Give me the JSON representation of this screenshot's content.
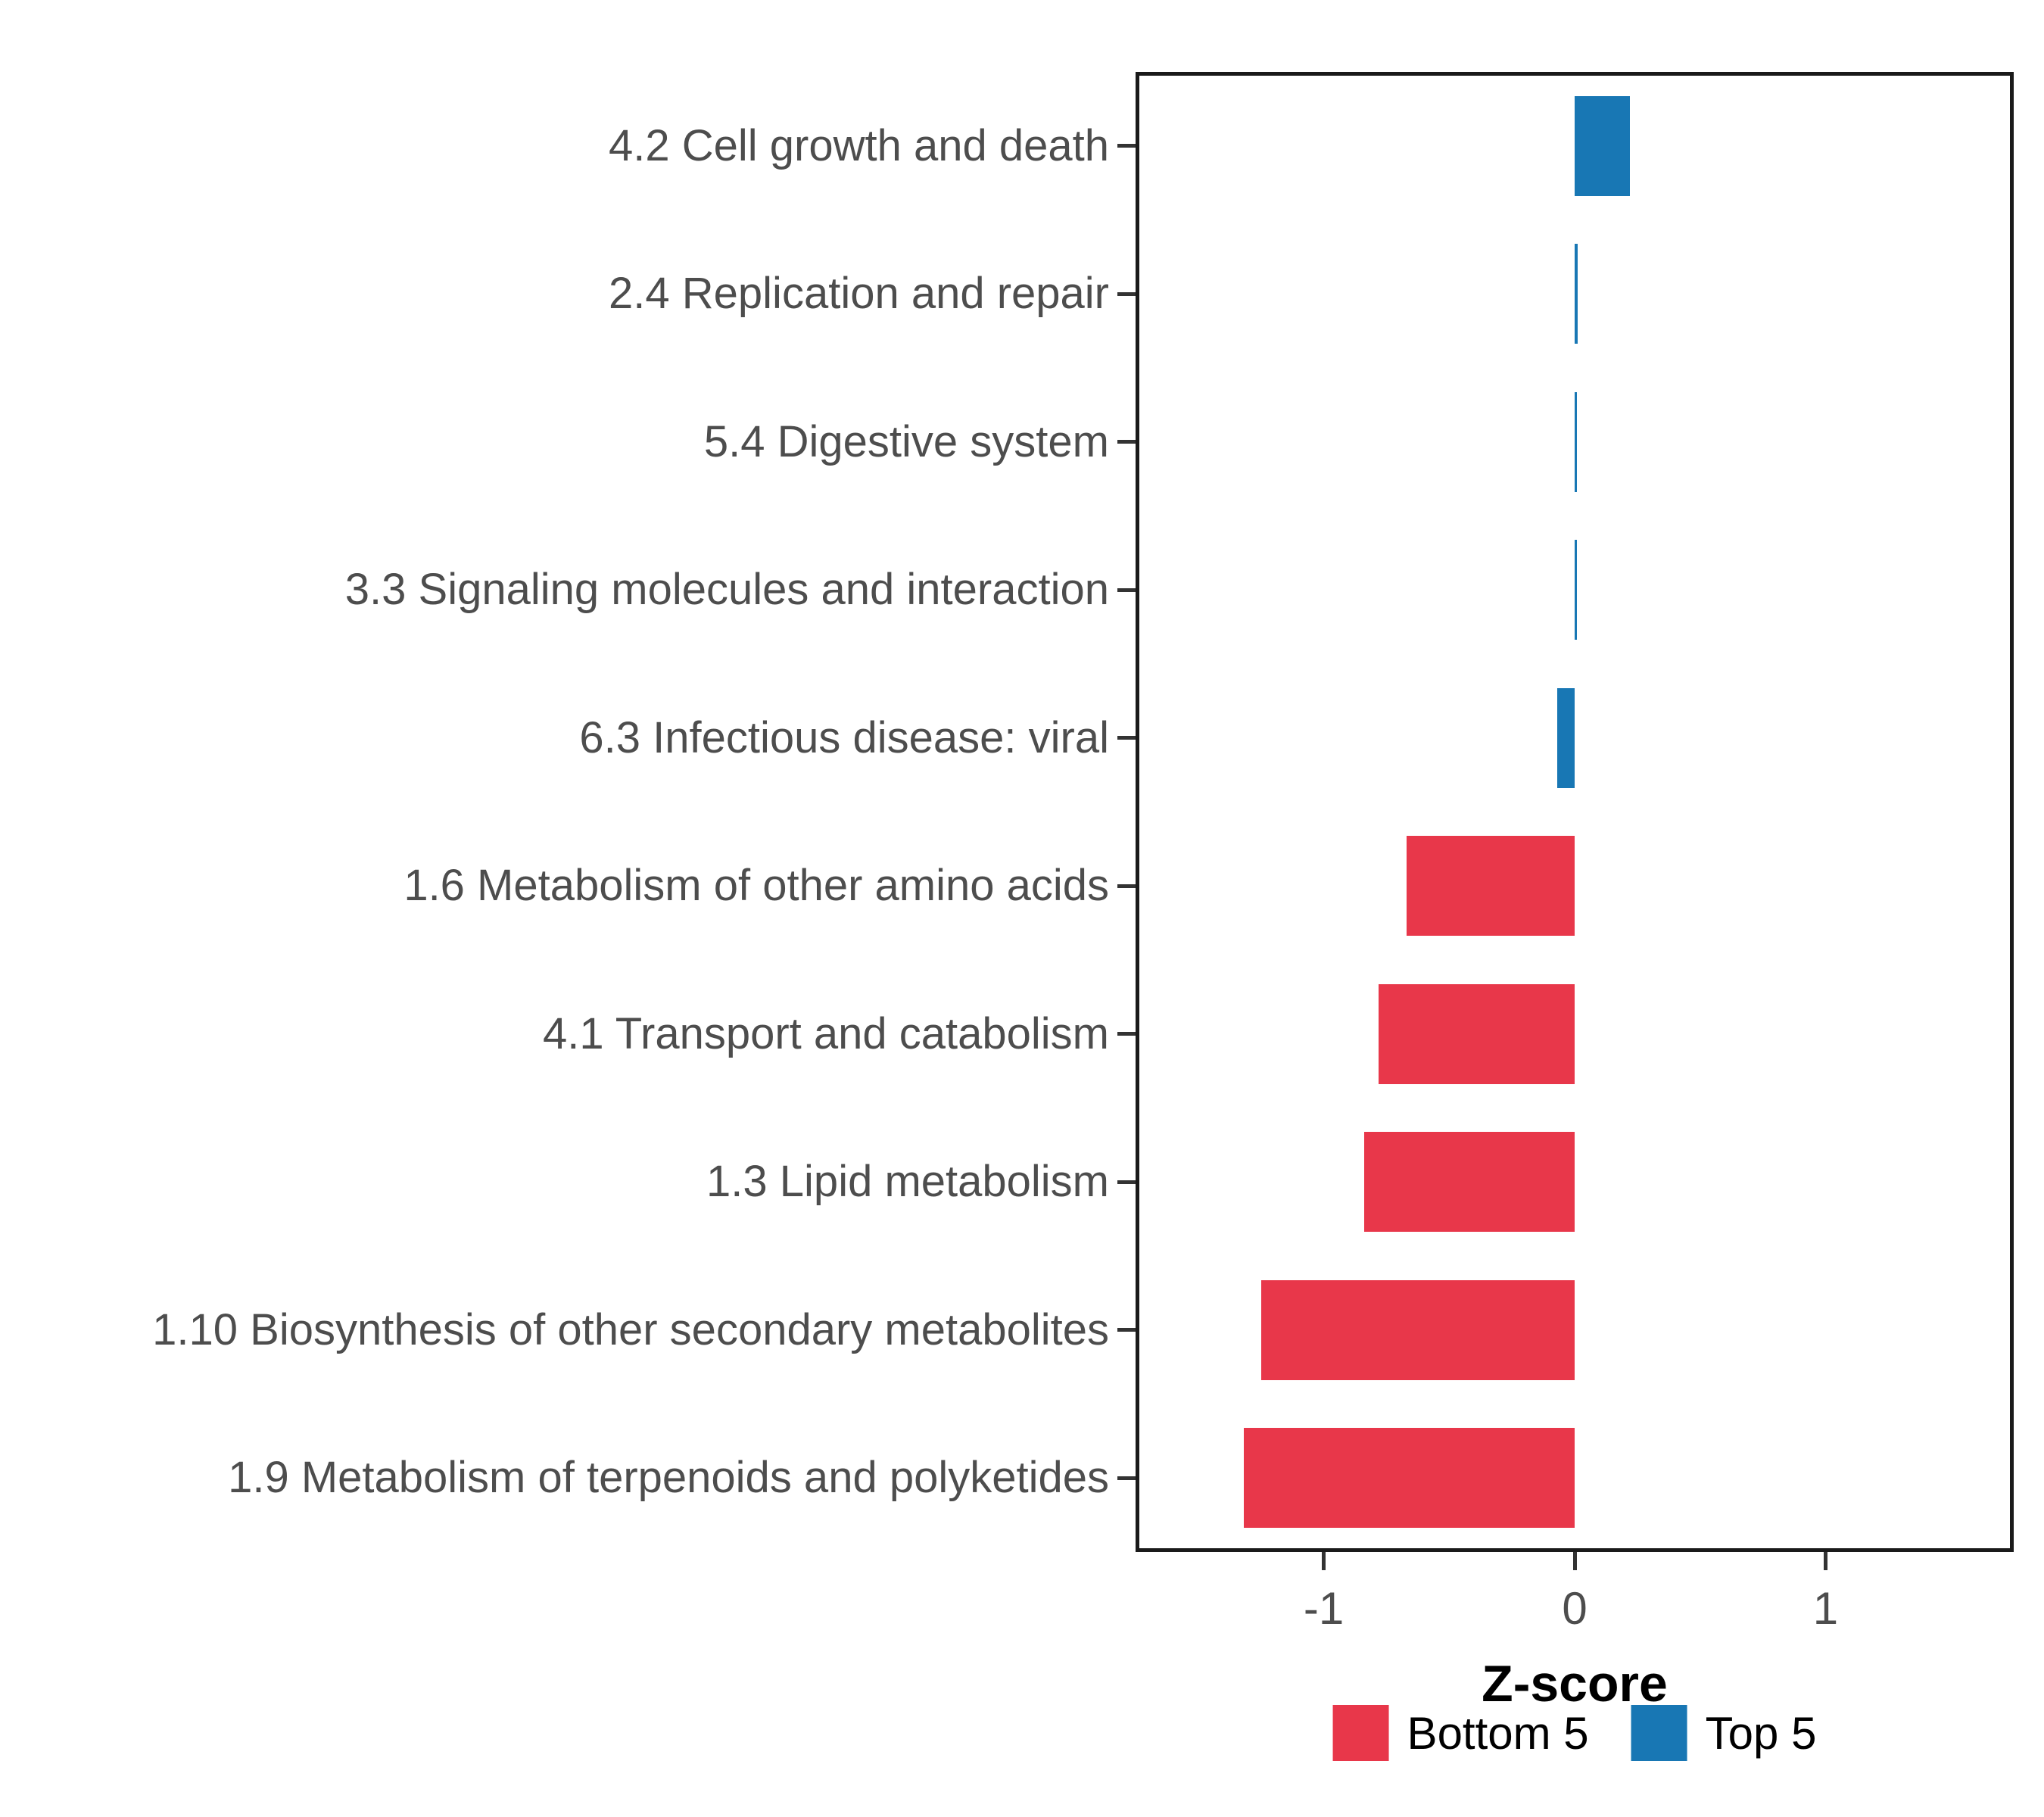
{
  "chart_data": {
    "type": "bar",
    "orientation": "horizontal",
    "xlabel": "Z-score",
    "xlim": [
      -1.75,
      1.75
    ],
    "xticks": [
      -1,
      0,
      1
    ],
    "grid": false,
    "legend_position": "bottom",
    "categories": [
      "4.2 Cell growth and death",
      "2.4 Replication and repair",
      "5.4 Digestive system",
      "3.3 Signaling molecules and interaction",
      "6.3 Infectious disease: viral",
      "1.6 Metabolism of other amino acids",
      "4.1 Transport and catabolism",
      "1.3 Lipid metabolism",
      "1.10 Biosynthesis of other secondary metabolites",
      "1.9 Metabolism of terpenoids and polyketides"
    ],
    "values": [
      0.22,
      0.012,
      0.004,
      0.004,
      -0.07,
      -0.67,
      -0.78,
      -0.84,
      -1.25,
      -1.32
    ],
    "groups": [
      "Top 5",
      "Top 5",
      "Top 5",
      "Top 5",
      "Top 5",
      "Bottom 5",
      "Bottom 5",
      "Bottom 5",
      "Bottom 5",
      "Bottom 5"
    ],
    "colors": {
      "Bottom 5": "#E8374A",
      "Top 5": "#1877B4"
    },
    "legend": [
      {
        "label": "Bottom 5",
        "color": "#E8374A"
      },
      {
        "label": "Top 5",
        "color": "#1877B4"
      }
    ]
  }
}
